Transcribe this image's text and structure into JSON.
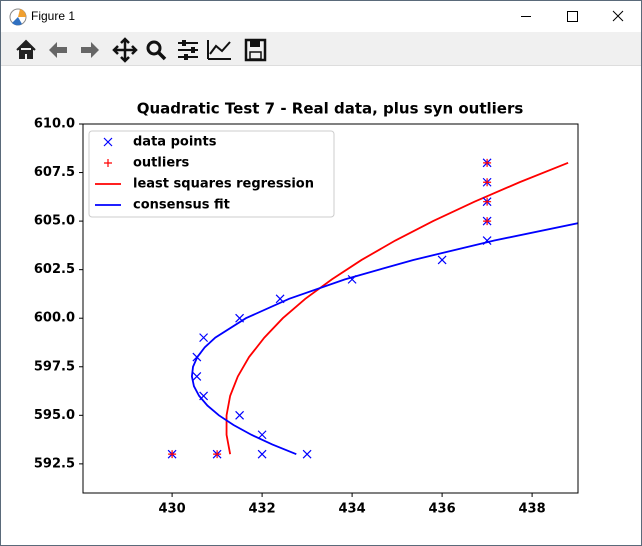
{
  "window": {
    "title": "Figure 1"
  },
  "chart_data": {
    "type": "scatter",
    "title": "Quadratic Test 7 - Real data, plus syn outliers",
    "xlim": [
      428.02,
      439.02
    ],
    "ylim": [
      591.0,
      610.0
    ],
    "xticks": [
      430,
      432,
      434,
      436,
      438
    ],
    "yticks": [
      592.5,
      {
        "value": 595,
        "label": "595.0"
      },
      597.5,
      {
        "value": 600,
        "label": "600.0"
      },
      602.5,
      {
        "value": 605,
        "label": "605.0"
      },
      607.5,
      {
        "value": 610,
        "label": "610.0"
      }
    ],
    "legend": "upper left",
    "series": [
      {
        "name": "data points",
        "type": "scatter",
        "marker": "x",
        "color": "#0000ff",
        "x": [
          430,
          431,
          432,
          433,
          431.5,
          432,
          430.7,
          430.55,
          430.55,
          430.7,
          431.5,
          432.4,
          434,
          436,
          437,
          437,
          437,
          437,
          437
        ],
        "y": [
          593,
          593,
          593,
          593,
          595,
          594,
          596,
          597,
          598,
          599,
          600,
          601,
          602,
          603,
          604,
          605,
          606,
          607,
          608
        ]
      },
      {
        "name": "outliers",
        "type": "scatter",
        "marker": "+",
        "color": "#ff0000",
        "x": [
          430,
          431,
          437,
          437,
          437,
          437
        ],
        "y": [
          593,
          593,
          605,
          606,
          607,
          608
        ]
      },
      {
        "name": "least squares regression",
        "type": "line",
        "color": "#ff0000",
        "x": [
          431.29,
          431.21,
          431.21,
          431.29,
          431.46,
          431.71,
          432.05,
          432.46,
          432.96,
          433.55,
          434.21,
          434.96,
          435.8,
          436.72,
          437.72,
          438.8
        ],
        "y": [
          593,
          594,
          595,
          596,
          597,
          598,
          599,
          600,
          601,
          602,
          603,
          604,
          605,
          606,
          607,
          608
        ]
      },
      {
        "name": "consensus fit",
        "type": "line",
        "color": "#0000ff",
        "x": [
          432.76,
          432.225,
          431.76,
          431.365,
          431.04,
          430.785,
          430.6,
          430.485,
          430.44,
          430.465,
          430.56,
          430.725,
          430.96,
          431.64,
          432.6,
          433.84,
          435.36,
          437.16,
          439.24
        ],
        "y": [
          593,
          593.5,
          594,
          594.5,
          595,
          595.5,
          596,
          596.5,
          597,
          597.5,
          598,
          598.5,
          599,
          600,
          601,
          602,
          603,
          604,
          605
        ]
      }
    ]
  }
}
